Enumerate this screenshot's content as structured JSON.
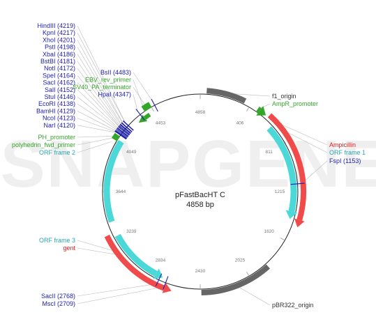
{
  "plasmid": {
    "name": "pFastBacHT C",
    "size": "4858 bp",
    "length": 4858
  },
  "watermark": "SNAPGENE",
  "colors": {
    "backbone": "#222222",
    "ticks": "#777777",
    "enzyme": "#1c1caa",
    "promoter": "#3a9a2a",
    "orf": "#2aa6b0",
    "resistance": "#e02020",
    "origin": "#666666"
  },
  "ticks": [
    "406",
    "811",
    "1215",
    "1620",
    "2025",
    "2430",
    "2834",
    "3239",
    "3644",
    "4049",
    "4453",
    "4858"
  ],
  "features": [
    {
      "name": "AmpR",
      "type": "resistance",
      "color": "#f04a4a",
      "start": 570,
      "end": 1430,
      "arrow": "cw"
    },
    {
      "name": "ORF frame 1",
      "type": "orf",
      "color": "#4ad8d8",
      "start": 640,
      "end": 1380,
      "arrow": "cw"
    },
    {
      "name": "f1 ori",
      "type": "origin",
      "color": "#666666",
      "start": 50,
      "end": 356,
      "arrow": "none"
    },
    {
      "name": "pBR322 ori",
      "type": "origin",
      "color": "#666666",
      "start": 1860,
      "end": 2420,
      "arrow": "none"
    },
    {
      "name": "gent",
      "type": "resistance",
      "color": "#f04a4a",
      "start": 2705,
      "end": 3300,
      "arrow": "ccw"
    },
    {
      "name": "ORF frame 3",
      "type": "orf",
      "color": "#4ad8d8",
      "start": 2810,
      "end": 3265,
      "arrow": "ccw"
    },
    {
      "name": "ORF frame 2",
      "type": "orf",
      "color": "#4ad8d8",
      "start": 3390,
      "end": 4080,
      "arrow": "none"
    },
    {
      "name": "SV40 pA",
      "type": "promoter",
      "color": "#33a62a",
      "start": 4390,
      "end": 4455,
      "arrow": "none"
    },
    {
      "name": "EBV rev primer",
      "type": "primer",
      "color": "#33a62a",
      "start": 4360,
      "end": 4410,
      "arrow": "ccw"
    },
    {
      "name": "PH promoter",
      "type": "promoter",
      "color": "#33a62a",
      "start": 4065,
      "end": 4110,
      "arrow": "none"
    },
    {
      "name": "AmpR promoter",
      "type": "promoter",
      "color": "#33a62a",
      "start": 470,
      "end": 490,
      "arrow": "cw"
    }
  ],
  "enzyme_sites": [
    4219,
    4217,
    4201,
    4198,
    4186,
    4181,
    4172,
    4164,
    4162,
    4152,
    4146,
    4138,
    4129,
    4123,
    4120,
    4483,
    4347,
    1153,
    2768,
    2709
  ],
  "labels": {
    "left": [
      {
        "text": "HindIII (4219)",
        "color": "#1c1caa",
        "pos": 4219
      },
      {
        "text": "KpnI (4217)",
        "color": "#1c1caa",
        "pos": 4217
      },
      {
        "text": "XhoI (4201)",
        "color": "#1c1caa",
        "pos": 4201
      },
      {
        "text": "PstI (4198)",
        "color": "#1c1caa",
        "pos": 4198
      },
      {
        "text": "XbaI (4186)",
        "color": "#1c1caa",
        "pos": 4186
      },
      {
        "text": "BstBI (4181)",
        "color": "#1c1caa",
        "pos": 4181
      },
      {
        "text": "NotI (4172)",
        "color": "#1c1caa",
        "pos": 4172
      },
      {
        "text": "SpeI (4164)",
        "color": "#1c1caa",
        "pos": 4164
      },
      {
        "text": "SacI (4162)",
        "color": "#1c1caa",
        "pos": 4162
      },
      {
        "text": "SalI (4152)",
        "color": "#1c1caa",
        "pos": 4152
      },
      {
        "text": "StuI (4146)",
        "color": "#1c1caa",
        "pos": 4146
      },
      {
        "text": "EcoRI (4138)",
        "color": "#1c1caa",
        "pos": 4138
      },
      {
        "text": "BamHI (4129)",
        "color": "#1c1caa",
        "pos": 4129
      },
      {
        "text": "NcoI (4123)",
        "color": "#1c1caa",
        "pos": 4123
      },
      {
        "text": "NarI (4120)",
        "color": "#1c1caa",
        "pos": 4120
      },
      {
        "text": "PH_promoter",
        "color": "#33a62a",
        "pos": 4090
      },
      {
        "text": "polyhedrin_fwd_primer",
        "color": "#33a62a",
        "pos": 4075
      },
      {
        "text": "ORF frame 2",
        "color": "#2aa6b0",
        "pos": 4040
      },
      {
        "text": "ORF frame 3",
        "color": "#2aa6b0",
        "pos": 3150
      },
      {
        "text": "gent",
        "color": "#e02020",
        "pos": 3120
      },
      {
        "text": "SacII (2768)",
        "color": "#1c1caa",
        "pos": 2768
      },
      {
        "text": "MscI (2709)",
        "color": "#1c1caa",
        "pos": 2709
      }
    ],
    "top": [
      {
        "text": "BsII (4483)",
        "color": "#1c1caa",
        "pos": 4483
      },
      {
        "text": "EBV_rev_primer",
        "color": "#33a62a",
        "pos": 4400
      },
      {
        "text": "SV40_PA_terminator",
        "color": "#33a62a",
        "pos": 4420
      },
      {
        "text": "HpaI (4347)",
        "color": "#1c1caa",
        "pos": 4347
      }
    ],
    "right": [
      {
        "text": "f1_origin",
        "color": "#333333",
        "pos": 200
      },
      {
        "text": "AmpR_promoter",
        "color": "#33a62a",
        "pos": 480
      },
      {
        "text": "Ampicillin",
        "color": "#e02020",
        "pos": 620
      },
      {
        "text": "ORF frame 1",
        "color": "#2aa6b0",
        "pos": 700
      },
      {
        "text": "FspI (1153)",
        "color": "#1c1caa",
        "pos": 1153
      },
      {
        "text": "pBR322_origin",
        "color": "#333333",
        "pos": 2140
      }
    ]
  }
}
